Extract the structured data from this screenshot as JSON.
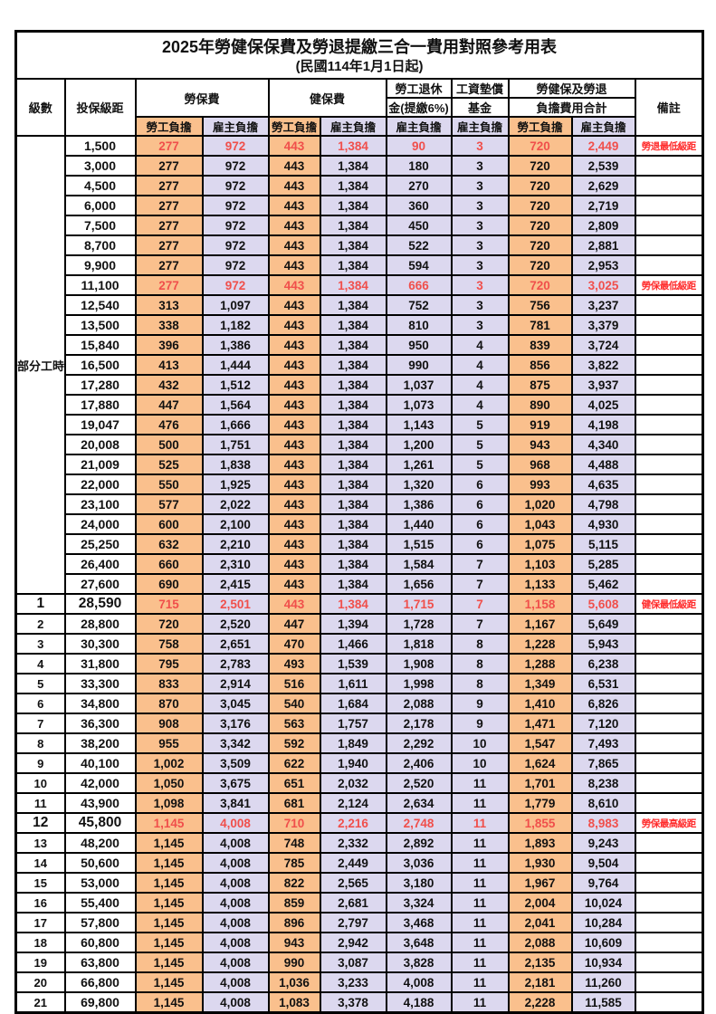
{
  "title": "2025年勞健保保費及勞退提繳三合一費用對照參考用表",
  "subtitle": "(民國114年1月1日起)",
  "colors": {
    "employee_bg": "#fac08d",
    "employer_bg": "#dcd8ef",
    "red": "#f04f4b",
    "remark_red": "#ff2a2a",
    "border": "#000000"
  },
  "header": {
    "level": "級數",
    "bracket": "投保級距",
    "labor_ins": "勞保費",
    "health_ins": "健保費",
    "pension_line1": "勞工退休",
    "pension_line2": "金(提繳6%)",
    "wage_fund_line1": "工資墊償",
    "wage_fund_line2": "基金",
    "total_line1": "勞健保及勞退",
    "total_line2": "負擔費用合計",
    "remark": "備註",
    "employee": "勞工負擔",
    "employer": "雇主負擔"
  },
  "part_time": {
    "label": "部分工時",
    "span": 23
  },
  "chart_data": {
    "type": "table",
    "title": "2025年勞健保保費及勞退提繳三合一費用對照參考用表",
    "value_columns": [
      "勞保費-勞工負擔",
      "勞保費-雇主負擔",
      "健保費-勞工負擔",
      "健保費-雇主負擔",
      "勞工退休金(提繳6%)-雇主負擔",
      "工資墊償基金-雇主負擔",
      "合計-勞工負擔",
      "合計-雇主負擔"
    ]
  },
  "rows": [
    {
      "level": null,
      "bracket": "1,500",
      "values": [
        "277",
        "972",
        "443",
        "1,384",
        "90",
        "3",
        "720",
        "2,449"
      ],
      "remark": "勞退最低級距",
      "highlight": true,
      "strong": false
    },
    {
      "level": null,
      "bracket": "3,000",
      "values": [
        "277",
        "972",
        "443",
        "1,384",
        "180",
        "3",
        "720",
        "2,539"
      ],
      "remark": "",
      "highlight": false,
      "strong": false
    },
    {
      "level": null,
      "bracket": "4,500",
      "values": [
        "277",
        "972",
        "443",
        "1,384",
        "270",
        "3",
        "720",
        "2,629"
      ],
      "remark": "",
      "highlight": false,
      "strong": false
    },
    {
      "level": null,
      "bracket": "6,000",
      "values": [
        "277",
        "972",
        "443",
        "1,384",
        "360",
        "3",
        "720",
        "2,719"
      ],
      "remark": "",
      "highlight": false,
      "strong": false
    },
    {
      "level": null,
      "bracket": "7,500",
      "values": [
        "277",
        "972",
        "443",
        "1,384",
        "450",
        "3",
        "720",
        "2,809"
      ],
      "remark": "",
      "highlight": false,
      "strong": false
    },
    {
      "level": null,
      "bracket": "8,700",
      "values": [
        "277",
        "972",
        "443",
        "1,384",
        "522",
        "3",
        "720",
        "2,881"
      ],
      "remark": "",
      "highlight": false,
      "strong": false
    },
    {
      "level": null,
      "bracket": "9,900",
      "values": [
        "277",
        "972",
        "443",
        "1,384",
        "594",
        "3",
        "720",
        "2,953"
      ],
      "remark": "",
      "highlight": false,
      "strong": false
    },
    {
      "level": null,
      "bracket": "11,100",
      "values": [
        "277",
        "972",
        "443",
        "1,384",
        "666",
        "3",
        "720",
        "3,025"
      ],
      "remark": "勞保最低級距",
      "highlight": true,
      "strong": false
    },
    {
      "level": null,
      "bracket": "12,540",
      "values": [
        "313",
        "1,097",
        "443",
        "1,384",
        "752",
        "3",
        "756",
        "3,237"
      ],
      "remark": "",
      "highlight": false,
      "strong": false
    },
    {
      "level": null,
      "bracket": "13,500",
      "values": [
        "338",
        "1,182",
        "443",
        "1,384",
        "810",
        "3",
        "781",
        "3,379"
      ],
      "remark": "",
      "highlight": false,
      "strong": false
    },
    {
      "level": null,
      "bracket": "15,840",
      "values": [
        "396",
        "1,386",
        "443",
        "1,384",
        "950",
        "4",
        "839",
        "3,724"
      ],
      "remark": "",
      "highlight": false,
      "strong": false
    },
    {
      "level": null,
      "bracket": "16,500",
      "values": [
        "413",
        "1,444",
        "443",
        "1,384",
        "990",
        "4",
        "856",
        "3,822"
      ],
      "remark": "",
      "highlight": false,
      "strong": false
    },
    {
      "level": null,
      "bracket": "17,280",
      "values": [
        "432",
        "1,512",
        "443",
        "1,384",
        "1,037",
        "4",
        "875",
        "3,937"
      ],
      "remark": "",
      "highlight": false,
      "strong": false
    },
    {
      "level": null,
      "bracket": "17,880",
      "values": [
        "447",
        "1,564",
        "443",
        "1,384",
        "1,073",
        "4",
        "890",
        "4,025"
      ],
      "remark": "",
      "highlight": false,
      "strong": false
    },
    {
      "level": null,
      "bracket": "19,047",
      "values": [
        "476",
        "1,666",
        "443",
        "1,384",
        "1,143",
        "5",
        "919",
        "4,198"
      ],
      "remark": "",
      "highlight": false,
      "strong": false
    },
    {
      "level": null,
      "bracket": "20,008",
      "values": [
        "500",
        "1,751",
        "443",
        "1,384",
        "1,200",
        "5",
        "943",
        "4,340"
      ],
      "remark": "",
      "highlight": false,
      "strong": false
    },
    {
      "level": null,
      "bracket": "21,009",
      "values": [
        "525",
        "1,838",
        "443",
        "1,384",
        "1,261",
        "5",
        "968",
        "4,488"
      ],
      "remark": "",
      "highlight": false,
      "strong": false
    },
    {
      "level": null,
      "bracket": "22,000",
      "values": [
        "550",
        "1,925",
        "443",
        "1,384",
        "1,320",
        "6",
        "993",
        "4,635"
      ],
      "remark": "",
      "highlight": false,
      "strong": false
    },
    {
      "level": null,
      "bracket": "23,100",
      "values": [
        "577",
        "2,022",
        "443",
        "1,384",
        "1,386",
        "6",
        "1,020",
        "4,798"
      ],
      "remark": "",
      "highlight": false,
      "strong": false
    },
    {
      "level": null,
      "bracket": "24,000",
      "values": [
        "600",
        "2,100",
        "443",
        "1,384",
        "1,440",
        "6",
        "1,043",
        "4,930"
      ],
      "remark": "",
      "highlight": false,
      "strong": false
    },
    {
      "level": null,
      "bracket": "25,250",
      "values": [
        "632",
        "2,210",
        "443",
        "1,384",
        "1,515",
        "6",
        "1,075",
        "5,115"
      ],
      "remark": "",
      "highlight": false,
      "strong": false
    },
    {
      "level": null,
      "bracket": "26,400",
      "values": [
        "660",
        "2,310",
        "443",
        "1,384",
        "1,584",
        "7",
        "1,103",
        "5,285"
      ],
      "remark": "",
      "highlight": false,
      "strong": false
    },
    {
      "level": null,
      "bracket": "27,600",
      "values": [
        "690",
        "2,415",
        "443",
        "1,384",
        "1,656",
        "7",
        "1,133",
        "5,462"
      ],
      "remark": "",
      "highlight": false,
      "strong": false
    },
    {
      "level": "1",
      "bracket": "28,590",
      "values": [
        "715",
        "2,501",
        "443",
        "1,384",
        "1,715",
        "7",
        "1,158",
        "5,608"
      ],
      "remark": "健保最低級距",
      "highlight": true,
      "strong": true
    },
    {
      "level": "2",
      "bracket": "28,800",
      "values": [
        "720",
        "2,520",
        "447",
        "1,394",
        "1,728",
        "7",
        "1,167",
        "5,649"
      ],
      "remark": "",
      "highlight": false,
      "strong": false
    },
    {
      "level": "3",
      "bracket": "30,300",
      "values": [
        "758",
        "2,651",
        "470",
        "1,466",
        "1,818",
        "8",
        "1,228",
        "5,943"
      ],
      "remark": "",
      "highlight": false,
      "strong": false
    },
    {
      "level": "4",
      "bracket": "31,800",
      "values": [
        "795",
        "2,783",
        "493",
        "1,539",
        "1,908",
        "8",
        "1,288",
        "6,238"
      ],
      "remark": "",
      "highlight": false,
      "strong": false
    },
    {
      "level": "5",
      "bracket": "33,300",
      "values": [
        "833",
        "2,914",
        "516",
        "1,611",
        "1,998",
        "8",
        "1,349",
        "6,531"
      ],
      "remark": "",
      "highlight": false,
      "strong": false
    },
    {
      "level": "6",
      "bracket": "34,800",
      "values": [
        "870",
        "3,045",
        "540",
        "1,684",
        "2,088",
        "9",
        "1,410",
        "6,826"
      ],
      "remark": "",
      "highlight": false,
      "strong": false
    },
    {
      "level": "7",
      "bracket": "36,300",
      "values": [
        "908",
        "3,176",
        "563",
        "1,757",
        "2,178",
        "9",
        "1,471",
        "7,120"
      ],
      "remark": "",
      "highlight": false,
      "strong": false
    },
    {
      "level": "8",
      "bracket": "38,200",
      "values": [
        "955",
        "3,342",
        "592",
        "1,849",
        "2,292",
        "10",
        "1,547",
        "7,493"
      ],
      "remark": "",
      "highlight": false,
      "strong": false
    },
    {
      "level": "9",
      "bracket": "40,100",
      "values": [
        "1,002",
        "3,509",
        "622",
        "1,940",
        "2,406",
        "10",
        "1,624",
        "7,865"
      ],
      "remark": "",
      "highlight": false,
      "strong": false
    },
    {
      "level": "10",
      "bracket": "42,000",
      "values": [
        "1,050",
        "3,675",
        "651",
        "2,032",
        "2,520",
        "11",
        "1,701",
        "8,238"
      ],
      "remark": "",
      "highlight": false,
      "strong": false
    },
    {
      "level": "11",
      "bracket": "43,900",
      "values": [
        "1,098",
        "3,841",
        "681",
        "2,124",
        "2,634",
        "11",
        "1,779",
        "8,610"
      ],
      "remark": "",
      "highlight": false,
      "strong": false
    },
    {
      "level": "12",
      "bracket": "45,800",
      "values": [
        "1,145",
        "4,008",
        "710",
        "2,216",
        "2,748",
        "11",
        "1,855",
        "8,983"
      ],
      "remark": "勞保最高級距",
      "highlight": true,
      "strong": true
    },
    {
      "level": "13",
      "bracket": "48,200",
      "values": [
        "1,145",
        "4,008",
        "748",
        "2,332",
        "2,892",
        "11",
        "1,893",
        "9,243"
      ],
      "remark": "",
      "highlight": false,
      "strong": false
    },
    {
      "level": "14",
      "bracket": "50,600",
      "values": [
        "1,145",
        "4,008",
        "785",
        "2,449",
        "3,036",
        "11",
        "1,930",
        "9,504"
      ],
      "remark": "",
      "highlight": false,
      "strong": false
    },
    {
      "level": "15",
      "bracket": "53,000",
      "values": [
        "1,145",
        "4,008",
        "822",
        "2,565",
        "3,180",
        "11",
        "1,967",
        "9,764"
      ],
      "remark": "",
      "highlight": false,
      "strong": false
    },
    {
      "level": "16",
      "bracket": "55,400",
      "values": [
        "1,145",
        "4,008",
        "859",
        "2,681",
        "3,324",
        "11",
        "2,004",
        "10,024"
      ],
      "remark": "",
      "highlight": false,
      "strong": false
    },
    {
      "level": "17",
      "bracket": "57,800",
      "values": [
        "1,145",
        "4,008",
        "896",
        "2,797",
        "3,468",
        "11",
        "2,041",
        "10,284"
      ],
      "remark": "",
      "highlight": false,
      "strong": false
    },
    {
      "level": "18",
      "bracket": "60,800",
      "values": [
        "1,145",
        "4,008",
        "943",
        "2,942",
        "3,648",
        "11",
        "2,088",
        "10,609"
      ],
      "remark": "",
      "highlight": false,
      "strong": false
    },
    {
      "level": "19",
      "bracket": "63,800",
      "values": [
        "1,145",
        "4,008",
        "990",
        "3,087",
        "3,828",
        "11",
        "2,135",
        "10,934"
      ],
      "remark": "",
      "highlight": false,
      "strong": false
    },
    {
      "level": "20",
      "bracket": "66,800",
      "values": [
        "1,145",
        "4,008",
        "1,036",
        "3,233",
        "4,008",
        "11",
        "2,181",
        "11,260"
      ],
      "remark": "",
      "highlight": false,
      "strong": false
    },
    {
      "level": "21",
      "bracket": "69,800",
      "values": [
        "1,145",
        "4,008",
        "1,083",
        "3,378",
        "4,188",
        "11",
        "2,228",
        "11,585"
      ],
      "remark": "",
      "highlight": false,
      "strong": false
    }
  ]
}
